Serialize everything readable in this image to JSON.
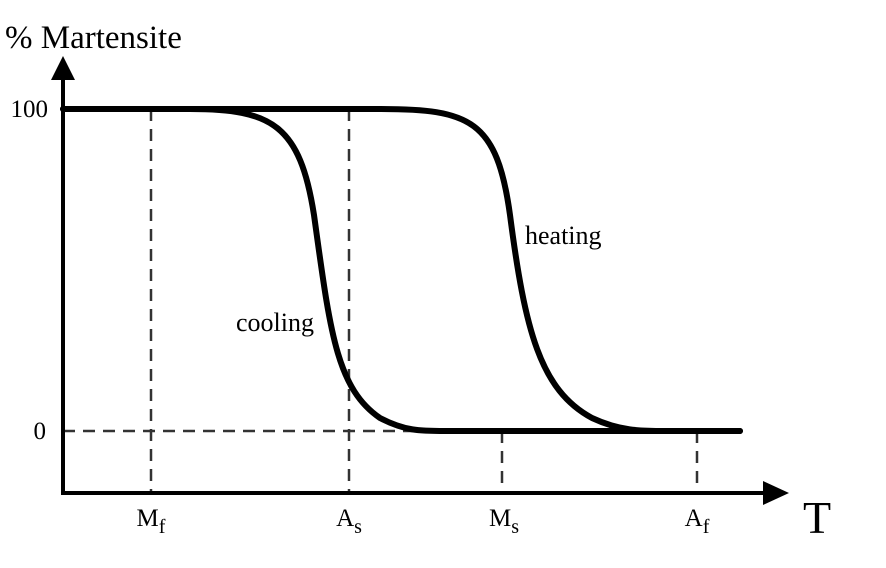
{
  "y_axis_label": "% Martensite",
  "x_axis_label": "T",
  "y_ticks": [
    "100",
    "0"
  ],
  "x_ticks": [
    {
      "main": "M",
      "sub": "f"
    },
    {
      "main": "A",
      "sub": "s"
    },
    {
      "main": "M",
      "sub": "s"
    },
    {
      "main": "A",
      "sub": "f"
    }
  ],
  "curves": {
    "cooling": "cooling",
    "heating": "heating"
  }
}
